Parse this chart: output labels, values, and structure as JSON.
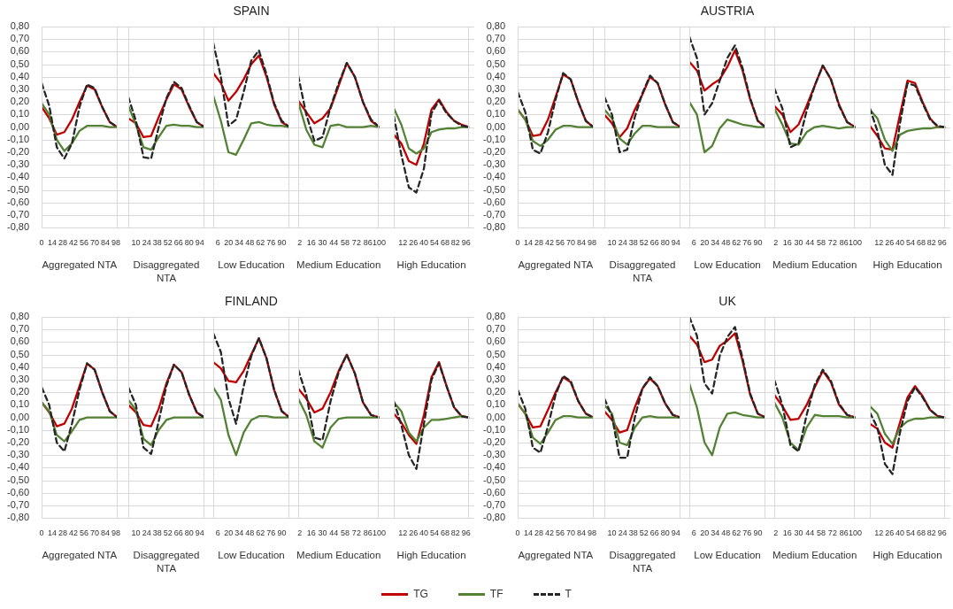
{
  "chart_data": [
    {
      "type": "line",
      "xlabel": "Aggregated NTA",
      "grid": "y",
      "marker": "none",
      "x": [
        0,
        10,
        20,
        30,
        40,
        50,
        60,
        70,
        80,
        90,
        100
      ],
      "xlim": [
        0,
        100
      ],
      "xticks": [
        0,
        14,
        28,
        42,
        56,
        70,
        84,
        98
      ],
      "ylim": [
        -0.8,
        0.8
      ],
      "yticks": [
        {
          "value": 0.8,
          "label": "0,80"
        },
        {
          "value": 0.7,
          "label": "0,70"
        },
        {
          "value": 0.6,
          "label": "0,60"
        },
        {
          "value": 0.5,
          "label": "0,50"
        },
        {
          "value": 0.4,
          "label": "0,40"
        },
        {
          "value": 0.3,
          "label": "0,30"
        },
        {
          "value": 0.2,
          "label": "0,20"
        },
        {
          "value": 0.1,
          "label": "0,10"
        },
        {
          "value": 0,
          "label": "0,00"
        },
        {
          "value": -0.1,
          "label": "-0,10"
        },
        {
          "value": -0.2,
          "label": "-0,20"
        },
        {
          "value": -0.3,
          "label": "-0,30"
        },
        {
          "value": -0.4,
          "label": "-0,40"
        },
        {
          "value": -0.5,
          "label": "-0,50"
        },
        {
          "value": -0.6,
          "label": "-0,60"
        },
        {
          "value": -0.7,
          "label": "-0,70"
        },
        {
          "value": -0.8,
          "label": "-0,80"
        }
      ],
      "series": [
        {
          "color": "#c00000",
          "line_style": "solid",
          "values": [
            0.16,
            0.07,
            -0.06,
            -0.04,
            0.06,
            0.2,
            0.33,
            0.3,
            0.16,
            0.04,
            0
          ]
        },
        {
          "color": "#548235",
          "line_style": "solid",
          "values": [
            0.19,
            0.1,
            -0.1,
            -0.19,
            -0.13,
            -0.03,
            0.01,
            0.01,
            0.01,
            0,
            0
          ]
        },
        {
          "color": "#262626",
          "line_style": "dashed",
          "values": [
            0.35,
            0.17,
            -0.16,
            -0.25,
            -0.13,
            0.16,
            0.34,
            0.31,
            0.16,
            0.04,
            0
          ]
        }
      ]
    },
    {
      "type": "line",
      "xlabel": "Disaggregated NTA",
      "grid": "y",
      "marker": "none",
      "tick_labels": "x",
      "x": [
        0,
        10,
        20,
        30,
        40,
        50,
        60,
        70,
        80,
        90,
        100
      ],
      "xlim": [
        0,
        100
      ],
      "xticks": [
        10,
        24,
        38,
        52,
        66,
        80,
        94
      ],
      "ylim": [
        -0.8,
        0.8
      ],
      "yticks": [
        0.8,
        0.7,
        0.6,
        0.5,
        0.4,
        0.3,
        0.2,
        0.1,
        0,
        -0.1,
        -0.2,
        -0.3,
        -0.4,
        -0.5,
        -0.6,
        -0.7,
        -0.8
      ],
      "series": [
        {
          "color": "#c00000",
          "line_style": "solid",
          "values": [
            0.07,
            0.03,
            -0.08,
            -0.07,
            0.08,
            0.22,
            0.34,
            0.3,
            0.16,
            0.04,
            0
          ]
        },
        {
          "color": "#548235",
          "line_style": "solid",
          "values": [
            0.17,
            0.02,
            -0.16,
            -0.18,
            -0.08,
            0.01,
            0.02,
            0.01,
            0.01,
            0,
            0
          ]
        },
        {
          "color": "#262626",
          "line_style": "dashed",
          "values": [
            0.24,
            0.05,
            -0.24,
            -0.25,
            0,
            0.23,
            0.36,
            0.31,
            0.17,
            0.04,
            0
          ]
        }
      ]
    },
    {
      "type": "line",
      "title": "SPAIN",
      "xlabel": "Low Education",
      "grid": "y",
      "marker": "none",
      "tick_labels": "x",
      "x": [
        0,
        10,
        20,
        30,
        40,
        50,
        60,
        70,
        80,
        90,
        100
      ],
      "xlim": [
        0,
        100
      ],
      "xticks": [
        6,
        20,
        34,
        48,
        62,
        76,
        90
      ],
      "ylim": [
        -0.8,
        0.8
      ],
      "yticks": [
        0.8,
        0.7,
        0.6,
        0.5,
        0.4,
        0.3,
        0.2,
        0.1,
        0,
        -0.1,
        -0.2,
        -0.3,
        -0.4,
        -0.5,
        -0.6,
        -0.7,
        -0.8
      ],
      "series": [
        {
          "color": "#c00000",
          "line_style": "solid",
          "values": [
            0.43,
            0.35,
            0.21,
            0.28,
            0.38,
            0.5,
            0.57,
            0.4,
            0.18,
            0.04,
            0
          ]
        },
        {
          "color": "#548235",
          "line_style": "solid",
          "values": [
            0.25,
            0.05,
            -0.2,
            -0.22,
            -0.1,
            0.03,
            0.04,
            0.02,
            0.01,
            0.01,
            0
          ]
        },
        {
          "color": "#262626",
          "line_style": "dashed",
          "values": [
            0.67,
            0.4,
            0.01,
            0.06,
            0.28,
            0.53,
            0.61,
            0.42,
            0.19,
            0.05,
            0
          ]
        }
      ]
    },
    {
      "type": "line",
      "xlabel": "Medium Education",
      "grid": "y",
      "marker": "none",
      "tick_labels": "x",
      "x": [
        0,
        10,
        20,
        30,
        40,
        50,
        60,
        70,
        80,
        90,
        100
      ],
      "xlim": [
        0,
        100
      ],
      "xticks": [
        2,
        16,
        30,
        44,
        58,
        72,
        86,
        100
      ],
      "ylim": [
        -0.8,
        0.8
      ],
      "yticks": [
        0.8,
        0.7,
        0.6,
        0.5,
        0.4,
        0.3,
        0.2,
        0.1,
        0,
        -0.1,
        -0.2,
        -0.3,
        -0.4,
        -0.5,
        -0.6,
        -0.7,
        -0.8
      ],
      "series": [
        {
          "color": "#c00000",
          "line_style": "solid",
          "values": [
            0.21,
            0.12,
            0.03,
            0.07,
            0.15,
            0.33,
            0.51,
            0.4,
            0.2,
            0.05,
            0
          ]
        },
        {
          "color": "#548235",
          "line_style": "solid",
          "values": [
            0.2,
            -0.02,
            -0.14,
            -0.16,
            0.01,
            0.02,
            0,
            0,
            0,
            0.01,
            0
          ]
        },
        {
          "color": "#262626",
          "line_style": "dashed",
          "values": [
            0.41,
            0.1,
            -0.11,
            -0.08,
            0.16,
            0.35,
            0.51,
            0.4,
            0.2,
            0.06,
            0
          ]
        }
      ]
    },
    {
      "type": "line",
      "xlabel": "High Education",
      "grid": "y",
      "marker": "none",
      "tick_labels": "x",
      "x": [
        0,
        10,
        20,
        30,
        40,
        50,
        60,
        70,
        80,
        90,
        100
      ],
      "xlim": [
        0,
        100
      ],
      "xticks": [
        12,
        26,
        40,
        54,
        68,
        82,
        96
      ],
      "ylim": [
        -0.8,
        0.8
      ],
      "yticks": [
        0.8,
        0.7,
        0.6,
        0.5,
        0.4,
        0.3,
        0.2,
        0.1,
        0,
        -0.1,
        -0.2,
        -0.3,
        -0.4,
        -0.5,
        -0.6,
        -0.7,
        -0.8
      ],
      "series": [
        {
          "color": "#c00000",
          "line_style": "solid",
          "values": [
            -0.06,
            -0.13,
            -0.27,
            -0.3,
            -0.13,
            0.14,
            0.22,
            0.12,
            0.05,
            0.02,
            0
          ]
        },
        {
          "color": "#548235",
          "line_style": "solid",
          "values": [
            0.15,
            0.02,
            -0.17,
            -0.21,
            -0.17,
            -0.04,
            -0.02,
            -0.01,
            -0.01,
            0,
            0
          ]
        },
        {
          "color": "#262626",
          "line_style": "dashed",
          "values": [
            0.09,
            -0.22,
            -0.48,
            -0.52,
            -0.33,
            0.11,
            0.21,
            0.11,
            0.05,
            0.01,
            0
          ]
        }
      ]
    },
    {
      "type": "line",
      "xlabel": "Aggregated NTA",
      "grid": "y",
      "marker": "none",
      "x": [
        0,
        10,
        20,
        30,
        40,
        50,
        60,
        70,
        80,
        90,
        100
      ],
      "xlim": [
        0,
        100
      ],
      "xticks": [
        0,
        14,
        28,
        42,
        56,
        70,
        84,
        98
      ],
      "ylim": [
        -0.8,
        0.8
      ],
      "yticks": [
        {
          "value": 0.8,
          "label": "0,80"
        },
        {
          "value": 0.7,
          "label": "0,70"
        },
        {
          "value": 0.6,
          "label": "0,60"
        },
        {
          "value": 0.5,
          "label": "0,50"
        },
        {
          "value": 0.4,
          "label": "0,40"
        },
        {
          "value": 0.3,
          "label": "0,30"
        },
        {
          "value": 0.2,
          "label": "0,20"
        },
        {
          "value": 0.1,
          "label": "0,10"
        },
        {
          "value": 0,
          "label": "0,00"
        },
        {
          "value": -0.1,
          "label": "-0,10"
        },
        {
          "value": -0.2,
          "label": "-0,20"
        },
        {
          "value": -0.3,
          "label": "-0,30"
        },
        {
          "value": -0.4,
          "label": "-0,40"
        },
        {
          "value": -0.5,
          "label": "-0,50"
        },
        {
          "value": -0.6,
          "label": "-0,60"
        },
        {
          "value": -0.7,
          "label": "-0,70"
        },
        {
          "value": -0.8,
          "label": "-0,80"
        }
      ],
      "series": [
        {
          "color": "#c00000",
          "line_style": "solid",
          "values": [
            0.14,
            0.06,
            -0.07,
            -0.06,
            0.06,
            0.24,
            0.42,
            0.38,
            0.2,
            0.05,
            0
          ]
        },
        {
          "color": "#548235",
          "line_style": "solid",
          "values": [
            0.14,
            0.06,
            -0.11,
            -0.15,
            -0.1,
            -0.02,
            0.01,
            0.01,
            0,
            0,
            0
          ]
        },
        {
          "color": "#262626",
          "line_style": "dashed",
          "values": [
            0.28,
            0.12,
            -0.18,
            -0.21,
            -0.04,
            0.22,
            0.43,
            0.38,
            0.2,
            0.05,
            0
          ]
        }
      ]
    },
    {
      "type": "line",
      "xlabel": "Disaggregated NTA",
      "grid": "y",
      "marker": "none",
      "tick_labels": "x",
      "x": [
        0,
        10,
        20,
        30,
        40,
        50,
        60,
        70,
        80,
        90,
        100
      ],
      "xlim": [
        0,
        100
      ],
      "xticks": [
        10,
        24,
        38,
        52,
        66,
        80,
        94
      ],
      "ylim": [
        -0.8,
        0.8
      ],
      "yticks": [
        0.8,
        0.7,
        0.6,
        0.5,
        0.4,
        0.3,
        0.2,
        0.1,
        0,
        -0.1,
        -0.2,
        -0.3,
        -0.4,
        -0.5,
        -0.6,
        -0.7,
        -0.8
      ],
      "series": [
        {
          "color": "#c00000",
          "line_style": "solid",
          "values": [
            0.1,
            0.03,
            -0.08,
            -0.01,
            0.14,
            0.26,
            0.4,
            0.35,
            0.18,
            0.04,
            0
          ]
        },
        {
          "color": "#548235",
          "line_style": "solid",
          "values": [
            0.14,
            0.07,
            -0.09,
            -0.14,
            -0.05,
            0.01,
            0.01,
            0,
            0,
            0,
            0
          ]
        },
        {
          "color": "#262626",
          "line_style": "dashed",
          "values": [
            0.24,
            0.1,
            -0.2,
            -0.18,
            0.08,
            0.27,
            0.41,
            0.35,
            0.18,
            0.04,
            0
          ]
        }
      ]
    },
    {
      "type": "line",
      "title": "AUSTRIA",
      "xlabel": "Low Education",
      "grid": "y",
      "marker": "none",
      "tick_labels": "x",
      "x": [
        0,
        10,
        20,
        30,
        40,
        50,
        60,
        70,
        80,
        90,
        100
      ],
      "xlim": [
        0,
        100
      ],
      "xticks": [
        6,
        20,
        34,
        48,
        62,
        76,
        90
      ],
      "ylim": [
        -0.8,
        0.8
      ],
      "yticks": [
        0.8,
        0.7,
        0.6,
        0.5,
        0.4,
        0.3,
        0.2,
        0.1,
        0,
        -0.1,
        -0.2,
        -0.3,
        -0.4,
        -0.5,
        -0.6,
        -0.7,
        -0.8
      ],
      "series": [
        {
          "color": "#c00000",
          "line_style": "solid",
          "values": [
            0.52,
            0.45,
            0.29,
            0.34,
            0.38,
            0.48,
            0.61,
            0.45,
            0.22,
            0.05,
            0
          ]
        },
        {
          "color": "#548235",
          "line_style": "solid",
          "values": [
            0.2,
            0.1,
            -0.2,
            -0.15,
            -0.01,
            0.06,
            0.04,
            0.02,
            0.01,
            0,
            0
          ]
        },
        {
          "color": "#262626",
          "line_style": "dashed",
          "values": [
            0.72,
            0.55,
            0.1,
            0.19,
            0.37,
            0.55,
            0.65,
            0.47,
            0.23,
            0.05,
            0
          ]
        }
      ]
    },
    {
      "type": "line",
      "xlabel": "Medium Education",
      "grid": "y",
      "marker": "none",
      "tick_labels": "x",
      "x": [
        0,
        10,
        20,
        30,
        40,
        50,
        60,
        70,
        80,
        90,
        100
      ],
      "xlim": [
        0,
        100
      ],
      "xticks": [
        2,
        16,
        30,
        44,
        58,
        72,
        86,
        100
      ],
      "ylim": [
        -0.8,
        0.8
      ],
      "yticks": [
        0.8,
        0.7,
        0.6,
        0.5,
        0.4,
        0.3,
        0.2,
        0.1,
        0,
        -0.1,
        -0.2,
        -0.3,
        -0.4,
        -0.5,
        -0.6,
        -0.7,
        -0.8
      ],
      "series": [
        {
          "color": "#c00000",
          "line_style": "solid",
          "values": [
            0.17,
            0.1,
            -0.04,
            0.02,
            0.17,
            0.33,
            0.49,
            0.38,
            0.18,
            0.04,
            0
          ]
        },
        {
          "color": "#548235",
          "line_style": "solid",
          "values": [
            0.15,
            0.02,
            -0.13,
            -0.14,
            -0.04,
            0,
            0.01,
            0,
            -0.01,
            0,
            0
          ]
        },
        {
          "color": "#262626",
          "line_style": "dashed",
          "values": [
            0.31,
            0.15,
            -0.16,
            -0.13,
            0.13,
            0.33,
            0.49,
            0.38,
            0.17,
            0.04,
            0
          ]
        }
      ]
    },
    {
      "type": "line",
      "xlabel": "High Education",
      "grid": "y",
      "marker": "none",
      "tick_labels": "x",
      "x": [
        0,
        10,
        20,
        30,
        40,
        50,
        60,
        70,
        80,
        90,
        100
      ],
      "xlim": [
        0,
        100
      ],
      "xticks": [
        12,
        26,
        40,
        54,
        68,
        82,
        96
      ],
      "ylim": [
        -0.8,
        0.8
      ],
      "yticks": [
        0.8,
        0.7,
        0.6,
        0.5,
        0.4,
        0.3,
        0.2,
        0.1,
        0,
        -0.1,
        -0.2,
        -0.3,
        -0.4,
        -0.5,
        -0.6,
        -0.7,
        -0.8
      ],
      "series": [
        {
          "color": "#c00000",
          "line_style": "solid",
          "values": [
            0.01,
            -0.07,
            -0.17,
            -0.18,
            0.1,
            0.37,
            0.35,
            0.2,
            0.07,
            0,
            0
          ]
        },
        {
          "color": "#548235",
          "line_style": "solid",
          "values": [
            0.14,
            0.07,
            -0.1,
            -0.19,
            -0.06,
            -0.03,
            -0.02,
            -0.01,
            -0.01,
            0,
            0
          ]
        },
        {
          "color": "#262626",
          "line_style": "dashed",
          "values": [
            0.15,
            -0.03,
            -0.3,
            -0.38,
            0.03,
            0.35,
            0.33,
            0.19,
            0.06,
            0.01,
            0
          ]
        }
      ]
    },
    {
      "type": "line",
      "xlabel": "Aggregated NTA",
      "grid": "y",
      "marker": "none",
      "x": [
        0,
        10,
        20,
        30,
        40,
        50,
        60,
        70,
        80,
        90,
        100
      ],
      "xlim": [
        0,
        100
      ],
      "xticks": [
        0,
        14,
        28,
        42,
        56,
        70,
        84,
        98
      ],
      "ylim": [
        -0.8,
        0.8
      ],
      "yticks": [
        {
          "value": 0.8,
          "label": "0,80"
        },
        {
          "value": 0.7,
          "label": "0,70"
        },
        {
          "value": 0.6,
          "label": "0,60"
        },
        {
          "value": 0.5,
          "label": "0,50"
        },
        {
          "value": 0.4,
          "label": "0,40"
        },
        {
          "value": 0.3,
          "label": "0,30"
        },
        {
          "value": 0.2,
          "label": "0,20"
        },
        {
          "value": 0.1,
          "label": "0,10"
        },
        {
          "value": 0,
          "label": "0,00"
        },
        {
          "value": -0.1,
          "label": "-0,10"
        },
        {
          "value": -0.2,
          "label": "-0,20"
        },
        {
          "value": -0.3,
          "label": "-0,30"
        },
        {
          "value": -0.4,
          "label": "-0,40"
        },
        {
          "value": -0.5,
          "label": "-0,50"
        },
        {
          "value": -0.6,
          "label": "-0,60"
        },
        {
          "value": -0.7,
          "label": "-0,70"
        },
        {
          "value": -0.8,
          "label": "-0,80"
        }
      ],
      "series": [
        {
          "color": "#c00000",
          "line_style": "solid",
          "values": [
            0.12,
            0.04,
            -0.07,
            -0.05,
            0.07,
            0.25,
            0.43,
            0.38,
            0.2,
            0.05,
            0
          ]
        },
        {
          "color": "#548235",
          "line_style": "solid",
          "values": [
            0.12,
            0.05,
            -0.14,
            -0.19,
            -0.11,
            -0.02,
            0,
            0,
            0,
            0,
            0
          ]
        },
        {
          "color": "#262626",
          "line_style": "dashed",
          "values": [
            0.24,
            0.1,
            -0.2,
            -0.27,
            -0.05,
            0.22,
            0.43,
            0.38,
            0.2,
            0.05,
            0
          ]
        }
      ]
    },
    {
      "type": "line",
      "xlabel": "Disaggregated NTA",
      "grid": "y",
      "marker": "none",
      "tick_labels": "x",
      "x": [
        0,
        10,
        20,
        30,
        40,
        50,
        60,
        70,
        80,
        90,
        100
      ],
      "xlim": [
        0,
        100
      ],
      "xticks": [
        10,
        24,
        38,
        52,
        66,
        80,
        94
      ],
      "ylim": [
        -0.8,
        0.8
      ],
      "yticks": [
        0.8,
        0.7,
        0.6,
        0.5,
        0.4,
        0.3,
        0.2,
        0.1,
        0,
        -0.1,
        -0.2,
        -0.3,
        -0.4,
        -0.5,
        -0.6,
        -0.7,
        -0.8
      ],
      "series": [
        {
          "color": "#c00000",
          "line_style": "solid",
          "values": [
            0.1,
            0.04,
            -0.06,
            -0.07,
            0.07,
            0.27,
            0.42,
            0.36,
            0.18,
            0.04,
            0
          ]
        },
        {
          "color": "#548235",
          "line_style": "solid",
          "values": [
            0.14,
            0.06,
            -0.17,
            -0.22,
            -0.1,
            -0.02,
            0,
            0,
            0,
            0,
            0
          ]
        },
        {
          "color": "#262626",
          "line_style": "dashed",
          "values": [
            0.24,
            0.1,
            -0.24,
            -0.29,
            -0.03,
            0.25,
            0.42,
            0.36,
            0.18,
            0.04,
            0
          ]
        }
      ]
    },
    {
      "type": "line",
      "title": "FINLAND",
      "xlabel": "Low Education",
      "grid": "y",
      "marker": "none",
      "tick_labels": "x",
      "x": [
        0,
        10,
        20,
        30,
        40,
        50,
        60,
        70,
        80,
        90,
        100
      ],
      "xlim": [
        0,
        100
      ],
      "xticks": [
        6,
        20,
        34,
        48,
        62,
        76,
        90
      ],
      "ylim": [
        -0.8,
        0.8
      ],
      "yticks": [
        0.8,
        0.7,
        0.6,
        0.5,
        0.4,
        0.3,
        0.2,
        0.1,
        0,
        -0.1,
        -0.2,
        -0.3,
        -0.4,
        -0.5,
        -0.6,
        -0.7,
        -0.8
      ],
      "series": [
        {
          "color": "#c00000",
          "line_style": "solid",
          "values": [
            0.44,
            0.39,
            0.29,
            0.28,
            0.37,
            0.5,
            0.63,
            0.47,
            0.22,
            0.05,
            0
          ]
        },
        {
          "color": "#548235",
          "line_style": "solid",
          "values": [
            0.24,
            0.14,
            -0.14,
            -0.3,
            -0.12,
            -0.02,
            0.01,
            0.01,
            0,
            0,
            0
          ]
        },
        {
          "color": "#262626",
          "line_style": "dashed",
          "values": [
            0.67,
            0.52,
            0.15,
            -0.05,
            0.25,
            0.49,
            0.63,
            0.47,
            0.22,
            0.05,
            0
          ]
        }
      ]
    },
    {
      "type": "line",
      "xlabel": "Medium Education",
      "grid": "y",
      "marker": "none",
      "tick_labels": "x",
      "x": [
        0,
        10,
        20,
        30,
        40,
        50,
        60,
        70,
        80,
        90,
        100
      ],
      "xlim": [
        0,
        100
      ],
      "xticks": [
        2,
        16,
        30,
        44,
        58,
        72,
        86,
        100
      ],
      "ylim": [
        -0.8,
        0.8
      ],
      "yticks": [
        0.8,
        0.7,
        0.6,
        0.5,
        0.4,
        0.3,
        0.2,
        0.1,
        0,
        -0.1,
        -0.2,
        -0.3,
        -0.4,
        -0.5,
        -0.6,
        -0.7,
        -0.8
      ],
      "series": [
        {
          "color": "#c00000",
          "line_style": "solid",
          "values": [
            0.23,
            0.15,
            0.04,
            0.07,
            0.2,
            0.37,
            0.5,
            0.35,
            0.12,
            0.02,
            0
          ]
        },
        {
          "color": "#548235",
          "line_style": "solid",
          "values": [
            0.15,
            0.02,
            -0.19,
            -0.24,
            -0.08,
            -0.01,
            0,
            0,
            0,
            0,
            0
          ]
        },
        {
          "color": "#262626",
          "line_style": "dashed",
          "values": [
            0.38,
            0.18,
            -0.16,
            -0.18,
            0.13,
            0.36,
            0.5,
            0.35,
            0.12,
            0.02,
            0
          ]
        }
      ]
    },
    {
      "type": "line",
      "xlabel": "High Education",
      "grid": "y",
      "marker": "none",
      "tick_labels": "x",
      "x": [
        0,
        10,
        20,
        30,
        40,
        50,
        60,
        70,
        80,
        90,
        100
      ],
      "xlim": [
        0,
        100
      ],
      "xticks": [
        12,
        26,
        40,
        54,
        68,
        82,
        96
      ],
      "ylim": [
        -0.8,
        0.8
      ],
      "yticks": [
        0.8,
        0.7,
        0.6,
        0.5,
        0.4,
        0.3,
        0.2,
        0.1,
        0,
        -0.1,
        -0.2,
        -0.3,
        -0.4,
        -0.5,
        -0.6,
        -0.7,
        -0.8
      ],
      "series": [
        {
          "color": "#c00000",
          "line_style": "solid",
          "values": [
            0.03,
            -0.04,
            -0.14,
            -0.21,
            0.02,
            0.32,
            0.44,
            0.25,
            0.08,
            0.01,
            0
          ]
        },
        {
          "color": "#548235",
          "line_style": "solid",
          "values": [
            0.12,
            0.05,
            -0.12,
            -0.19,
            -0.08,
            -0.02,
            -0.02,
            -0.01,
            0,
            0.01,
            0
          ]
        },
        {
          "color": "#262626",
          "line_style": "dashed",
          "values": [
            0.13,
            -0.06,
            -0.3,
            -0.41,
            -0.05,
            0.3,
            0.43,
            0.25,
            0.08,
            0.01,
            0
          ]
        }
      ]
    },
    {
      "type": "line",
      "xlabel": "Aggregated NTA",
      "grid": "y",
      "marker": "none",
      "x": [
        0,
        10,
        20,
        30,
        40,
        50,
        60,
        70,
        80,
        90,
        100
      ],
      "xlim": [
        0,
        100
      ],
      "xticks": [
        0,
        14,
        28,
        42,
        56,
        70,
        84,
        98
      ],
      "ylim": [
        -0.8,
        0.8
      ],
      "yticks": [
        {
          "value": 0.8,
          "label": "0,80"
        },
        {
          "value": 0.7,
          "label": "0,70"
        },
        {
          "value": 0.6,
          "label": "0,60"
        },
        {
          "value": 0.5,
          "label": "0,50"
        },
        {
          "value": 0.4,
          "label": "0,40"
        },
        {
          "value": 0.3,
          "label": "0,30"
        },
        {
          "value": 0.2,
          "label": "0,20"
        },
        {
          "value": 0.1,
          "label": "0,10"
        },
        {
          "value": 0,
          "label": "0,00"
        },
        {
          "value": -0.1,
          "label": "-0,10"
        },
        {
          "value": -0.2,
          "label": "-0,20"
        },
        {
          "value": -0.3,
          "label": "-0,30"
        },
        {
          "value": -0.4,
          "label": "-0,40"
        },
        {
          "value": -0.5,
          "label": "-0,50"
        },
        {
          "value": -0.6,
          "label": "-0,60"
        },
        {
          "value": -0.7,
          "label": "-0,70"
        },
        {
          "value": -0.8,
          "label": "-0,80"
        }
      ],
      "series": [
        {
          "color": "#c00000",
          "line_style": "solid",
          "values": [
            0.11,
            0.03,
            -0.08,
            -0.07,
            0.06,
            0.2,
            0.32,
            0.28,
            0.13,
            0.03,
            0
          ]
        },
        {
          "color": "#548235",
          "line_style": "solid",
          "values": [
            0.11,
            0.03,
            -0.16,
            -0.21,
            -0.12,
            -0.02,
            0.01,
            0.01,
            0,
            0,
            0
          ]
        },
        {
          "color": "#262626",
          "line_style": "dashed",
          "values": [
            0.22,
            0.07,
            -0.24,
            -0.28,
            -0.07,
            0.18,
            0.33,
            0.29,
            0.13,
            0.03,
            0
          ]
        }
      ]
    },
    {
      "type": "line",
      "xlabel": "Disaggregated NTA",
      "grid": "y",
      "marker": "none",
      "tick_labels": "x",
      "x": [
        0,
        10,
        20,
        30,
        40,
        50,
        60,
        70,
        80,
        90,
        100
      ],
      "xlim": [
        0,
        100
      ],
      "xticks": [
        10,
        24,
        38,
        52,
        66,
        80,
        94
      ],
      "ylim": [
        -0.8,
        0.8
      ],
      "yticks": [
        0.8,
        0.7,
        0.6,
        0.5,
        0.4,
        0.3,
        0.2,
        0.1,
        0,
        -0.1,
        -0.2,
        -0.3,
        -0.4,
        -0.5,
        -0.6,
        -0.7,
        -0.8
      ],
      "series": [
        {
          "color": "#c00000",
          "line_style": "solid",
          "values": [
            0.05,
            -0.02,
            -0.12,
            -0.1,
            0.08,
            0.23,
            0.31,
            0.25,
            0.11,
            0.02,
            0
          ]
        },
        {
          "color": "#548235",
          "line_style": "solid",
          "values": [
            0.1,
            0.03,
            -0.2,
            -0.22,
            -0.08,
            0,
            0.01,
            0,
            0,
            0,
            0
          ]
        },
        {
          "color": "#262626",
          "line_style": "dashed",
          "values": [
            0.15,
            0.01,
            -0.32,
            -0.32,
            0,
            0.23,
            0.32,
            0.25,
            0.11,
            0.02,
            0
          ]
        }
      ]
    },
    {
      "type": "line",
      "title": "UK",
      "xlabel": "Low Education",
      "grid": "y",
      "marker": "none",
      "tick_labels": "x",
      "x": [
        0,
        10,
        20,
        30,
        40,
        50,
        60,
        70,
        80,
        90,
        100
      ],
      "xlim": [
        0,
        100
      ],
      "xticks": [
        6,
        20,
        34,
        48,
        62,
        76,
        90
      ],
      "ylim": [
        -0.8,
        0.8
      ],
      "yticks": [
        0.8,
        0.7,
        0.6,
        0.5,
        0.4,
        0.3,
        0.2,
        0.1,
        0,
        -0.1,
        -0.2,
        -0.3,
        -0.4,
        -0.5,
        -0.6,
        -0.7,
        -0.8
      ],
      "series": [
        {
          "color": "#c00000",
          "line_style": "solid",
          "values": [
            0.65,
            0.58,
            0.44,
            0.46,
            0.57,
            0.61,
            0.67,
            0.45,
            0.18,
            0.03,
            0
          ]
        },
        {
          "color": "#548235",
          "line_style": "solid",
          "values": [
            0.27,
            0.08,
            -0.2,
            -0.3,
            -0.08,
            0.03,
            0.04,
            0.02,
            0.01,
            0,
            0
          ]
        },
        {
          "color": "#262626",
          "line_style": "dashed",
          "values": [
            0.8,
            0.65,
            0.27,
            0.19,
            0.49,
            0.64,
            0.72,
            0.47,
            0.19,
            0.03,
            0
          ]
        }
      ]
    },
    {
      "type": "line",
      "xlabel": "Medium Education",
      "grid": "y",
      "marker": "none",
      "tick_labels": "x",
      "x": [
        0,
        10,
        20,
        30,
        40,
        50,
        60,
        70,
        80,
        90,
        100
      ],
      "xlim": [
        0,
        100
      ],
      "xticks": [
        2,
        16,
        30,
        44,
        58,
        72,
        86,
        100
      ],
      "ylim": [
        -0.8,
        0.8
      ],
      "yticks": [
        0.8,
        0.7,
        0.6,
        0.5,
        0.4,
        0.3,
        0.2,
        0.1,
        0,
        -0.1,
        -0.2,
        -0.3,
        -0.4,
        -0.5,
        -0.6,
        -0.7,
        -0.8
      ],
      "series": [
        {
          "color": "#c00000",
          "line_style": "solid",
          "values": [
            0.18,
            0.09,
            -0.02,
            -0.01,
            0.1,
            0.24,
            0.37,
            0.28,
            0.1,
            0.02,
            0
          ]
        },
        {
          "color": "#548235",
          "line_style": "solid",
          "values": [
            0.12,
            0,
            -0.2,
            -0.26,
            -0.08,
            0.02,
            0.01,
            0.01,
            0.01,
            0,
            0
          ]
        },
        {
          "color": "#262626",
          "line_style": "dashed",
          "values": [
            0.3,
            0.1,
            -0.22,
            -0.27,
            0.02,
            0.26,
            0.38,
            0.29,
            0.11,
            0.02,
            0
          ]
        }
      ]
    },
    {
      "type": "line",
      "xlabel": "High Education",
      "legend": "bottom",
      "grid": "y",
      "marker": "none",
      "tick_labels": "x",
      "x": [
        0,
        10,
        20,
        30,
        40,
        50,
        60,
        70,
        80,
        90,
        100
      ],
      "xlim": [
        0,
        100
      ],
      "xticks": [
        12,
        26,
        40,
        54,
        68,
        82,
        96
      ],
      "ylim": [
        -0.8,
        0.8
      ],
      "yticks": [
        0.8,
        0.7,
        0.6,
        0.5,
        0.4,
        0.3,
        0.2,
        0.1,
        0,
        -0.1,
        -0.2,
        -0.3,
        -0.4,
        -0.5,
        -0.6,
        -0.7,
        -0.8
      ],
      "series": [
        {
          "name": "TG",
          "color": "#c00000",
          "line_style": "solid",
          "values": [
            -0.05,
            -0.09,
            -0.2,
            -0.24,
            -0.04,
            0.16,
            0.25,
            0.17,
            0.06,
            0.01,
            0
          ]
        },
        {
          "name": "TF",
          "color": "#548235",
          "line_style": "solid",
          "values": [
            0.09,
            0.03,
            -0.13,
            -0.21,
            -0.08,
            -0.03,
            -0.01,
            -0.01,
            0,
            0,
            0
          ]
        },
        {
          "name": "T",
          "color": "#262626",
          "line_style": "dashed",
          "values": [
            0.04,
            -0.08,
            -0.37,
            -0.45,
            -0.12,
            0.13,
            0.24,
            0.16,
            0.06,
            0.01,
            0
          ]
        }
      ]
    }
  ]
}
